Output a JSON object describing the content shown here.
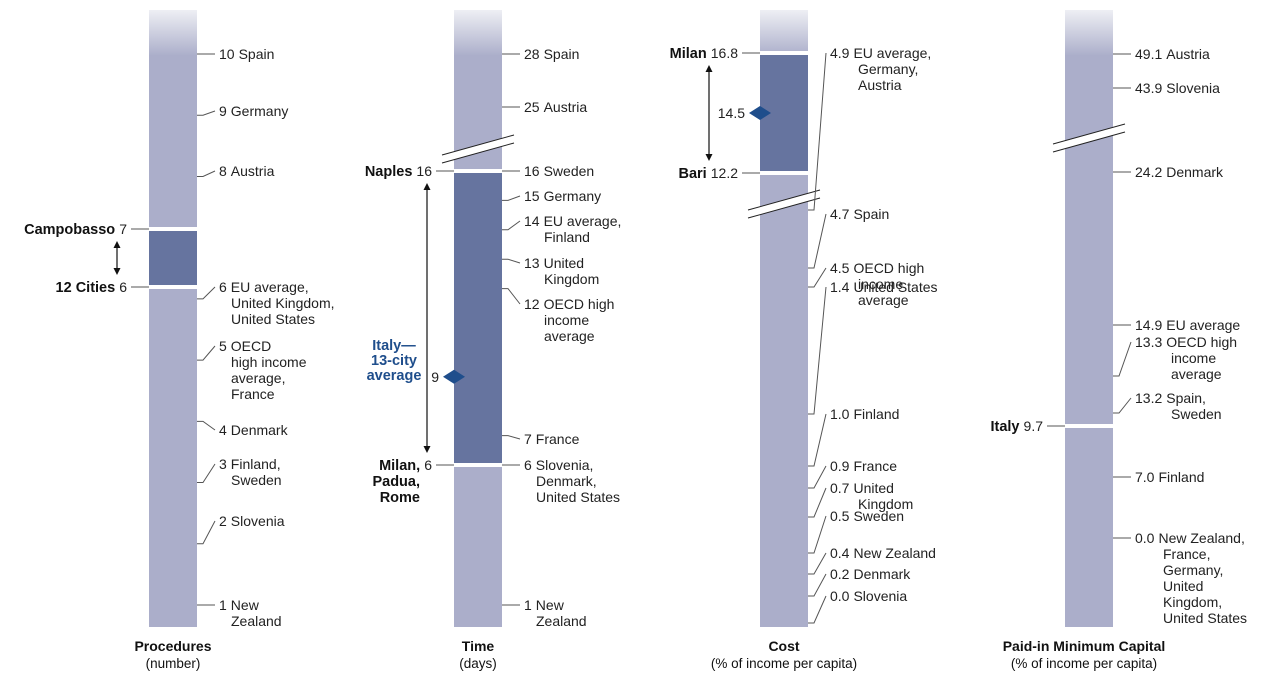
{
  "chart_data": [
    {
      "type": "range-scale",
      "title": "Procedures",
      "subtitle": "(number)",
      "comparators": [
        {
          "value": 10,
          "value_label": "10",
          "lines": [
            "Spain"
          ]
        },
        {
          "value": 9,
          "value_label": "9",
          "lines": [
            "Germany"
          ]
        },
        {
          "value": 8,
          "value_label": "8",
          "lines": [
            "Austria"
          ]
        },
        {
          "value": 6,
          "value_label": "6",
          "lines": [
            "EU average,",
            "United Kingdom,",
            "United States"
          ]
        },
        {
          "value": 5,
          "value_label": "5",
          "lines": [
            "OECD",
            "high income",
            "average,",
            "France"
          ]
        },
        {
          "value": 4,
          "value_label": "4",
          "lines": [
            "Denmark"
          ]
        },
        {
          "value": 3,
          "value_label": "3",
          "lines": [
            "Finland,",
            "Sweden"
          ]
        },
        {
          "value": 2,
          "value_label": "2",
          "lines": [
            "Slovenia"
          ]
        },
        {
          "value": 1,
          "value_label": "1",
          "lines": [
            "New",
            "Zealand"
          ]
        }
      ],
      "range": {
        "max": {
          "value": 7,
          "value_label": "7",
          "city": [
            "Campobasso"
          ]
        },
        "min": {
          "value": 6,
          "value_label": "6",
          "city": [
            "12 Cities"
          ]
        }
      },
      "average": null,
      "axis_break": false
    },
    {
      "type": "range-scale",
      "title": "Time",
      "subtitle": "(days)",
      "comparators": [
        {
          "value": 28,
          "value_label": "28",
          "lines": [
            "Spain"
          ]
        },
        {
          "value": 25,
          "value_label": "25",
          "lines": [
            "Austria"
          ]
        },
        {
          "value": 16,
          "value_label": "16",
          "lines": [
            "Sweden"
          ]
        },
        {
          "value": 15,
          "value_label": "15",
          "lines": [
            "Germany"
          ]
        },
        {
          "value": 14,
          "value_label": "14",
          "lines": [
            "EU average,",
            "Finland"
          ]
        },
        {
          "value": 13,
          "value_label": "13",
          "lines": [
            "United",
            "Kingdom"
          ]
        },
        {
          "value": 12,
          "value_label": "12",
          "lines": [
            "OECD high",
            "income",
            "average"
          ]
        },
        {
          "value": 7,
          "value_label": "7",
          "lines": [
            "France"
          ]
        },
        {
          "value": 6,
          "value_label": "6",
          "lines": [
            "Slovenia,",
            "Denmark,",
            "United States"
          ]
        },
        {
          "value": 1,
          "value_label": "1",
          "lines": [
            "New",
            "Zealand"
          ]
        }
      ],
      "range": {
        "max": {
          "value": 16,
          "value_label": "16",
          "city": [
            "Naples"
          ]
        },
        "min": {
          "value": 6,
          "value_label": "6",
          "city": [
            "Milan,",
            "Padua,",
            "Rome"
          ]
        }
      },
      "average": {
        "value": 9,
        "value_label": "9",
        "label": [
          "Italy—",
          "13-city",
          "average"
        ]
      },
      "axis_break": true
    },
    {
      "type": "range-scale",
      "title": "Cost",
      "subtitle": "(% of income per capita)",
      "comparators": [
        {
          "value": 4.9,
          "value_label": "4.9",
          "lines": [
            "EU average,",
            "Germany,",
            "Austria"
          ]
        },
        {
          "value": 4.7,
          "value_label": "4.7",
          "lines": [
            "Spain"
          ]
        },
        {
          "value": 4.5,
          "value_label": "4.5",
          "lines": [
            "OECD high",
            "income",
            "average"
          ]
        },
        {
          "value": 1.4,
          "value_label": "1.4",
          "lines": [
            "United States"
          ]
        },
        {
          "value": 1.0,
          "value_label": "1.0",
          "lines": [
            "Finland"
          ]
        },
        {
          "value": 0.9,
          "value_label": "0.9",
          "lines": [
            "France"
          ]
        },
        {
          "value": 0.7,
          "value_label": "0.7",
          "lines": [
            "United",
            "Kingdom"
          ]
        },
        {
          "value": 0.5,
          "value_label": "0.5",
          "lines": [
            "Sweden"
          ]
        },
        {
          "value": 0.4,
          "value_label": "0.4",
          "lines": [
            "New Zealand"
          ]
        },
        {
          "value": 0.2,
          "value_label": "0.2",
          "lines": [
            "Denmark"
          ]
        },
        {
          "value": 0.0,
          "value_label": "0.0",
          "lines": [
            "Slovenia"
          ]
        }
      ],
      "range": {
        "max": {
          "value": 16.8,
          "value_label": "16.8",
          "city": [
            "Milan"
          ]
        },
        "min": {
          "value": 12.2,
          "value_label": "12.2",
          "city": [
            "Bari"
          ]
        }
      },
      "average": {
        "value": 14.5,
        "value_label": "14.5",
        "label": []
      },
      "axis_break": true
    },
    {
      "type": "range-scale",
      "title": "Paid-in Minimum Capital",
      "subtitle": "(% of income per capita)",
      "comparators": [
        {
          "value": 49.1,
          "value_label": "49.1",
          "lines": [
            "Austria"
          ]
        },
        {
          "value": 43.9,
          "value_label": "43.9",
          "lines": [
            "Slovenia"
          ]
        },
        {
          "value": 24.2,
          "value_label": "24.2",
          "lines": [
            "Denmark"
          ]
        },
        {
          "value": 14.9,
          "value_label": "14.9",
          "lines": [
            "EU average"
          ]
        },
        {
          "value": 13.3,
          "value_label": "13.3",
          "lines": [
            "OECD high",
            "income",
            "average"
          ]
        },
        {
          "value": 13.2,
          "value_label": "13.2",
          "lines": [
            "Spain,",
            "Sweden"
          ]
        },
        {
          "value": 7.0,
          "value_label": "7.0",
          "lines": [
            "Finland"
          ]
        },
        {
          "value": 0.0,
          "value_label": "0.0",
          "lines": [
            "New Zealand,",
            "France,",
            "Germany,",
            "United",
            "Kingdom,",
            "United States"
          ]
        }
      ],
      "range": {
        "max": {
          "value": 9.7,
          "value_label": "9.7",
          "city": [
            "Italy"
          ]
        },
        "min": null
      },
      "average": null,
      "axis_break": true
    }
  ],
  "colors": {
    "bar": "#abaeca",
    "bar_fade": "#eeeff4",
    "highlight": "#66749f",
    "diamond": "#1f4e8c",
    "leader": "#555555"
  }
}
